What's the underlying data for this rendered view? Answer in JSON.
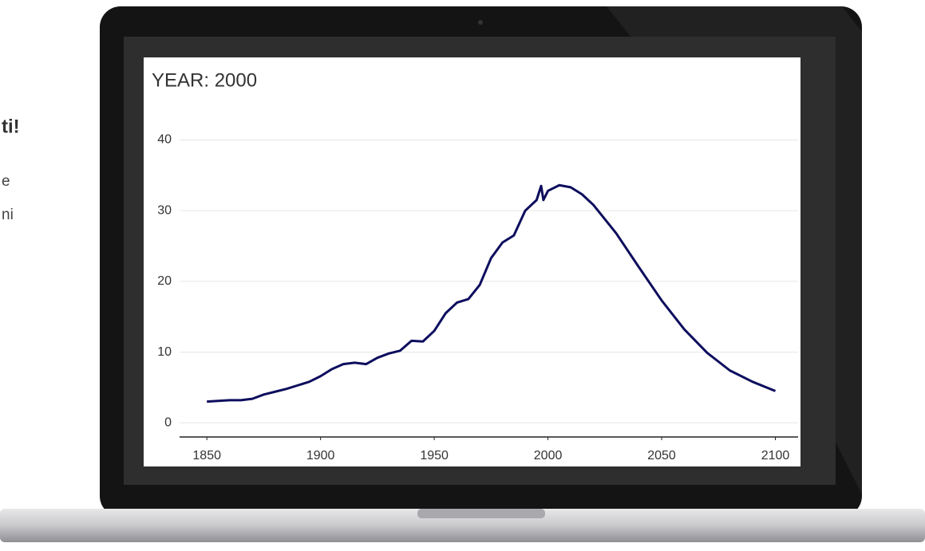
{
  "side_text": [
    "ti!",
    "e",
    "ni"
  ],
  "chart_data": {
    "type": "line",
    "title": "YEAR: 2000",
    "x": [
      1850,
      1855,
      1860,
      1865,
      1870,
      1875,
      1880,
      1885,
      1890,
      1895,
      1900,
      1905,
      1910,
      1915,
      1920,
      1925,
      1930,
      1935,
      1940,
      1945,
      1950,
      1955,
      1960,
      1965,
      1970,
      1975,
      1980,
      1985,
      1990,
      1995,
      1997,
      1998,
      2000,
      2005,
      2010,
      2015,
      2020,
      2030,
      2040,
      2050,
      2060,
      2070,
      2080,
      2090,
      2100
    ],
    "values": [
      3.0,
      3.1,
      3.2,
      3.2,
      3.4,
      4.0,
      4.4,
      4.8,
      5.3,
      5.8,
      6.6,
      7.6,
      8.3,
      8.5,
      8.3,
      9.2,
      9.8,
      10.2,
      11.6,
      11.5,
      13.0,
      15.5,
      17.0,
      17.5,
      19.5,
      23.3,
      25.5,
      26.5,
      30.0,
      31.5,
      33.5,
      31.5,
      32.8,
      33.6,
      33.3,
      32.3,
      30.8,
      26.8,
      22.0,
      17.3,
      13.2,
      9.9,
      7.4,
      5.8,
      4.5
    ],
    "color": "#0d0d5e",
    "xlim": [
      1838,
      2110
    ],
    "xticks": [
      1850,
      1900,
      1950,
      2000,
      2050,
      2100
    ],
    "ylim": [
      -2,
      44
    ],
    "yticks": [
      0,
      10,
      20,
      30,
      40
    ],
    "grid": true
  }
}
